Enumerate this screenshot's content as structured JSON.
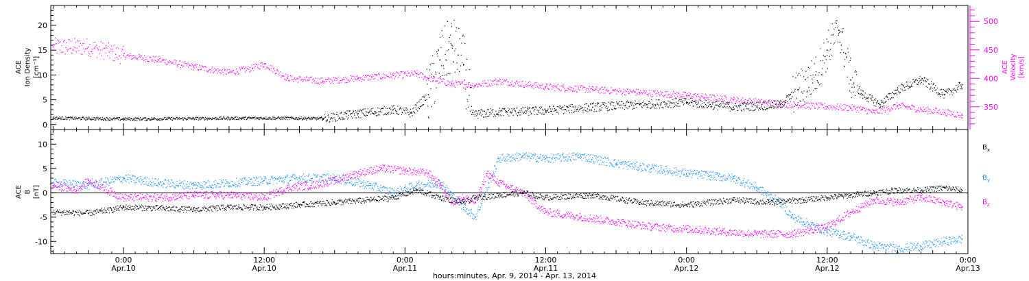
{
  "chart_data": [
    {
      "type": "scatter",
      "panel": "plasma",
      "ylabel_left": [
        "ACE",
        "Ion Density",
        "[cm⁻³]"
      ],
      "ylabel_right": [
        "ACE",
        "Velocity",
        "[km/s]"
      ],
      "ylim_left": [
        -1,
        24
      ],
      "yticks_left": [
        "0",
        "5",
        "10",
        "15",
        "20"
      ],
      "ylim_right": [
        310,
        528
      ],
      "yticks_right": [
        "350",
        "400",
        "450",
        "500"
      ],
      "xlim_hours": [
        -6.2,
        72
      ],
      "series": [
        {
          "name": "Ion Density",
          "axis": "left",
          "color": "#000000",
          "points": [
            [
              -6,
              1.3
            ],
            [
              0,
              1.1
            ],
            [
              6,
              1.2
            ],
            [
              12,
              1.3
            ],
            [
              17,
              1.2
            ],
            [
              20,
              2.2
            ],
            [
              23,
              3.0
            ],
            [
              24.5,
              2.3
            ],
            [
              26,
              6
            ],
            [
              27,
              13
            ],
            [
              28,
              16
            ],
            [
              29,
              12
            ],
            [
              29.7,
              2.0
            ],
            [
              32,
              2.5
            ],
            [
              36,
              2.8
            ],
            [
              40,
              3.5
            ],
            [
              44,
              4.0
            ],
            [
              48,
              4.5
            ],
            [
              52,
              3.5
            ],
            [
              56,
              4.0
            ],
            [
              57.5,
              7
            ],
            [
              59,
              10
            ],
            [
              60,
              15
            ],
            [
              61,
              19
            ],
            [
              62,
              9
            ],
            [
              63,
              6
            ],
            [
              64.5,
              4
            ],
            [
              66,
              7
            ],
            [
              68,
              9
            ],
            [
              70,
              6
            ],
            [
              71.5,
              8
            ]
          ]
        },
        {
          "name": "Velocity",
          "axis": "right",
          "color": "#ff00ff",
          "points": [
            [
              -6,
              455
            ],
            [
              -3,
              455
            ],
            [
              0,
              440
            ],
            [
              3,
              432
            ],
            [
              6,
              420
            ],
            [
              9,
              410
            ],
            [
              11,
              418
            ],
            [
              12,
              425
            ],
            [
              14,
              400
            ],
            [
              17,
              395
            ],
            [
              20,
              400
            ],
            [
              23,
              405
            ],
            [
              25,
              408
            ],
            [
              26,
              400
            ],
            [
              28,
              390
            ],
            [
              30,
              388
            ],
            [
              32,
              395
            ],
            [
              36,
              385
            ],
            [
              40,
              380
            ],
            [
              44,
              375
            ],
            [
              48,
              370
            ],
            [
              52,
              362
            ],
            [
              56,
              355
            ],
            [
              60,
              350
            ],
            [
              62,
              348
            ],
            [
              63,
              345
            ],
            [
              64,
              340
            ],
            [
              66,
              352
            ],
            [
              68,
              345
            ],
            [
              70,
              340
            ],
            [
              71.5,
              335
            ]
          ]
        }
      ]
    },
    {
      "type": "scatter",
      "panel": "magnetic-field",
      "ylabel_left": [
        "ACE",
        "B",
        "[nT]"
      ],
      "ylim": [
        -12.5,
        13
      ],
      "yticks": [
        "-10",
        "-5",
        "0",
        "5",
        "10"
      ],
      "xlim_hours": [
        -6.2,
        72
      ],
      "x_tick_labels": [
        {
          "h": 0,
          "time": "0:00",
          "date": "Apr.10"
        },
        {
          "h": 12,
          "time": "12:00",
          "date": "Apr.10"
        },
        {
          "h": 24,
          "time": "0:00",
          "date": "Apr.11"
        },
        {
          "h": 36,
          "time": "12:00",
          "date": "Apr.11"
        },
        {
          "h": 48,
          "time": "0:00",
          "date": "Apr.12"
        },
        {
          "h": 60,
          "time": "12:00",
          "date": "Apr.12"
        },
        {
          "h": 72,
          "time": "0:00",
          "date": "Apr.13"
        }
      ],
      "series": [
        {
          "name": "Bx",
          "label_main": "B",
          "label_sub": "x",
          "color": "#000000",
          "points": [
            [
              -6,
              -4.0
            ],
            [
              -3,
              -4.2
            ],
            [
              -1,
              -3.5
            ],
            [
              0,
              -3.0
            ],
            [
              3,
              -3.2
            ],
            [
              6,
              -3.5
            ],
            [
              9,
              -3.0
            ],
            [
              12,
              -3.0
            ],
            [
              15,
              -2.5
            ],
            [
              18,
              -2.0
            ],
            [
              21,
              -1.5
            ],
            [
              23,
              -1.0
            ],
            [
              25,
              0.5
            ],
            [
              27,
              -1.0
            ],
            [
              29,
              -2.0
            ],
            [
              30,
              -1.0
            ],
            [
              32,
              -0.5
            ],
            [
              34,
              0.0
            ],
            [
              36,
              -1.0
            ],
            [
              40,
              -0.5
            ],
            [
              44,
              -2.0
            ],
            [
              48,
              -2.5
            ],
            [
              52,
              -1.5
            ],
            [
              55,
              -2.0
            ],
            [
              58,
              -1.5
            ],
            [
              60,
              -1.0
            ],
            [
              62,
              -0.5
            ],
            [
              64,
              0.0
            ],
            [
              66,
              0.5
            ],
            [
              68,
              0.5
            ],
            [
              70,
              1.0
            ],
            [
              71.5,
              0.5
            ]
          ]
        },
        {
          "name": "By",
          "label_main": "B",
          "label_sub": "y",
          "color": "#1e90ff",
          "points": [
            [
              -6,
              2.0
            ],
            [
              -3,
              1.5
            ],
            [
              0,
              3.0
            ],
            [
              3,
              2.0
            ],
            [
              6,
              1.5
            ],
            [
              9,
              2.0
            ],
            [
              12,
              2.5
            ],
            [
              15,
              3.0
            ],
            [
              18,
              3.0
            ],
            [
              21,
              1.5
            ],
            [
              23,
              0.0
            ],
            [
              25,
              1.5
            ],
            [
              27,
              2.0
            ],
            [
              29,
              -3.0
            ],
            [
              30,
              -5.0
            ],
            [
              32,
              7.0
            ],
            [
              34,
              7.5
            ],
            [
              36,
              7.0
            ],
            [
              39,
              7.5
            ],
            [
              42,
              6.0
            ],
            [
              45,
              5.0
            ],
            [
              48,
              4.0
            ],
            [
              50,
              3.5
            ],
            [
              52,
              3.0
            ],
            [
              54,
              1.0
            ],
            [
              56,
              -2.0
            ],
            [
              57,
              -5.0
            ],
            [
              58,
              -6.0
            ],
            [
              59,
              -7.0
            ],
            [
              60,
              -8.0
            ],
            [
              62,
              -9.0
            ],
            [
              64,
              -11.0
            ],
            [
              66,
              -11.5
            ],
            [
              68,
              -11.0
            ],
            [
              70,
              -10.0
            ],
            [
              71.5,
              -9.5
            ]
          ]
        },
        {
          "name": "Bz",
          "label_main": "B",
          "label_sub": "z",
          "color": "#ff00ff",
          "points": [
            [
              -6,
              1.5
            ],
            [
              -4,
              0.5
            ],
            [
              -3,
              2.5
            ],
            [
              -1,
              0.0
            ],
            [
              0,
              -1.0
            ],
            [
              3,
              -1.0
            ],
            [
              6,
              -0.5
            ],
            [
              9,
              -0.5
            ],
            [
              12,
              -1.0
            ],
            [
              14,
              1.0
            ],
            [
              16,
              1.5
            ],
            [
              18,
              2.5
            ],
            [
              20,
              4.0
            ],
            [
              22,
              5.0
            ],
            [
              24,
              4.5
            ],
            [
              26,
              4.0
            ],
            [
              27,
              1.5
            ],
            [
              28,
              -2.0
            ],
            [
              29,
              -1.0
            ],
            [
              30,
              -2.0
            ],
            [
              31,
              4.0
            ],
            [
              32,
              2.0
            ],
            [
              34,
              0.0
            ],
            [
              36,
              -4.0
            ],
            [
              39,
              -5.0
            ],
            [
              42,
              -6.0
            ],
            [
              45,
              -7.0
            ],
            [
              48,
              -7.5
            ],
            [
              51,
              -8.0
            ],
            [
              54,
              -8.5
            ],
            [
              57,
              -8.5
            ],
            [
              60,
              -7.0
            ],
            [
              62,
              -4.0
            ],
            [
              64,
              -1.5
            ],
            [
              66,
              -2.0
            ],
            [
              68,
              -1.0
            ],
            [
              70,
              -2.0
            ],
            [
              71.5,
              -3.0
            ]
          ]
        }
      ]
    }
  ],
  "xlabel": "hours:minutes, Apr.  9, 2014 - Apr. 13, 2014"
}
